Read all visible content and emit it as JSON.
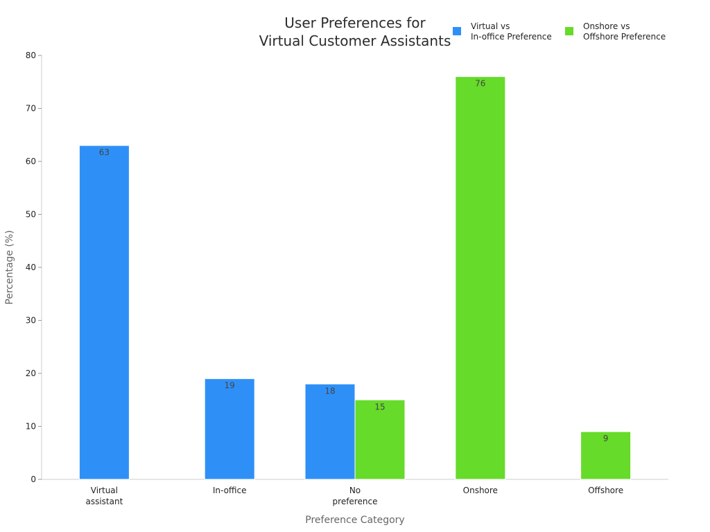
{
  "chart_data": {
    "type": "bar",
    "title": [
      "User Preferences for",
      "Virtual Customer Assistants"
    ],
    "xlabel": "Preference Category",
    "ylabel": "Percentage (%)",
    "ylim": [
      0,
      80
    ],
    "yticks": [
      0,
      10,
      20,
      30,
      40,
      50,
      60,
      70,
      80
    ],
    "grid": false,
    "legend_position": "top-right",
    "categories": [
      [
        "Virtual",
        "assistant"
      ],
      [
        "In-office"
      ],
      [
        "No",
        "preference"
      ],
      [
        "Onshore"
      ],
      [
        "Offshore"
      ]
    ],
    "series": [
      {
        "name": [
          "Virtual vs",
          "In-office Preference"
        ],
        "color": "#2e90f7",
        "values": [
          63,
          19,
          18,
          null,
          null
        ]
      },
      {
        "name": [
          "Onshore vs",
          "Offshore Preference"
        ],
        "color": "#66db29",
        "values": [
          null,
          null,
          15,
          76,
          9
        ]
      }
    ]
  }
}
